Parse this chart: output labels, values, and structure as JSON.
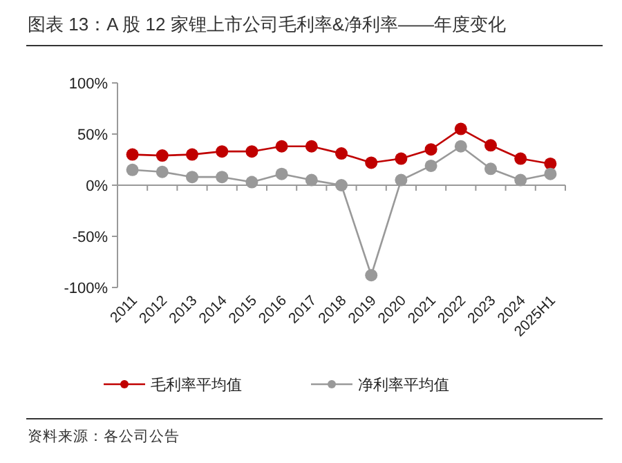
{
  "chart_data": {
    "type": "line",
    "title": "图表 13：A 股 12 家锂上市公司毛利率&净利率——年度变化",
    "categories": [
      "2011",
      "2012",
      "2013",
      "2014",
      "2015",
      "2016",
      "2017",
      "2018",
      "2019",
      "2020",
      "2021",
      "2022",
      "2023",
      "2024",
      "2025H1"
    ],
    "series": [
      {
        "name": "毛利率平均值",
        "color": "#c00000",
        "values": [
          30,
          29,
          30,
          33,
          33,
          38,
          38,
          31,
          22,
          26,
          35,
          55,
          39,
          26,
          21
        ]
      },
      {
        "name": "净利率平均值",
        "color": "#999999",
        "values": [
          15,
          13,
          8,
          8,
          3,
          11,
          5,
          0,
          -88,
          5,
          19,
          38,
          16,
          5,
          11
        ]
      }
    ],
    "ylim": [
      -100,
      100
    ],
    "yticks": [
      {
        "value": -100,
        "label": "-100%"
      },
      {
        "value": -50,
        "label": "-50%"
      },
      {
        "value": 0,
        "label": "0%"
      },
      {
        "value": 50,
        "label": "50%"
      },
      {
        "value": 100,
        "label": "100%"
      }
    ],
    "marker": "circle",
    "legend": "bottom",
    "annotations": [
      "资料来源：各公司公告"
    ]
  }
}
